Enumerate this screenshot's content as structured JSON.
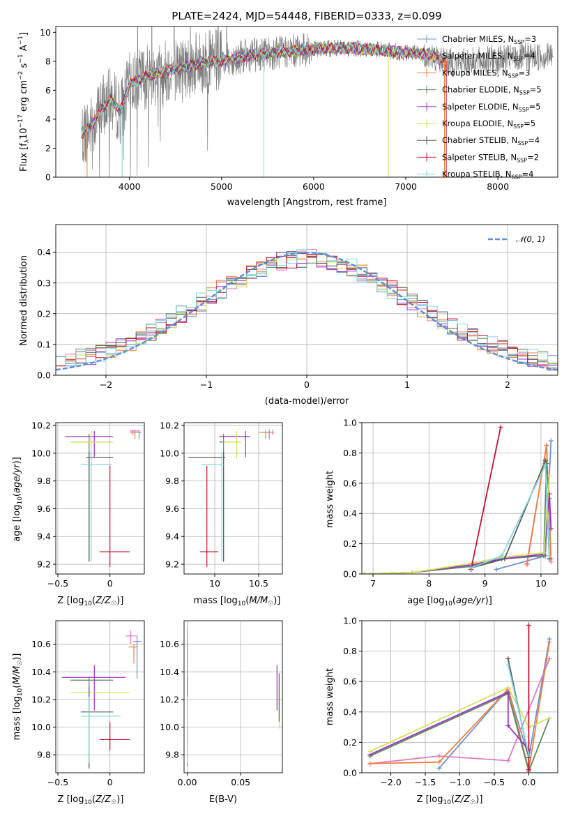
{
  "figure_title": "PLATE=2424, MJD=54448, FIBERID=0333, z=0.099",
  "series_styles": [
    {
      "name": "Chabrier MILES",
      "nssp": "3",
      "color": "#6f8fd6"
    },
    {
      "name": "Salpeter MILES",
      "nssp": "4",
      "color": "#e377c2"
    },
    {
      "name": "Kroupa MILES",
      "nssp": "3",
      "color": "#f07f3a"
    },
    {
      "name": "Chabrier ELODIE",
      "nssp": "5",
      "color": "#5a8a5a"
    },
    {
      "name": "Salpeter ELODIE",
      "nssp": "5",
      "color": "#9b30c8"
    },
    {
      "name": "Kroupa ELODIE",
      "nssp": "5",
      "color": "#d2e25a"
    },
    {
      "name": "Chabrier STELIB",
      "nssp": "4",
      "color": "#5c5c5c"
    },
    {
      "name": "Salpeter STELIB",
      "nssp": "2",
      "color": "#c8102e"
    },
    {
      "name": "Kroupa STELIB",
      "nssp": "4",
      "color": "#7fd8e0"
    }
  ],
  "chart_data": [
    {
      "type": "line",
      "id": "spectrum",
      "xlabel": "wavelength [Angstrom, rest frame]",
      "ylabel": "Flux [f_λ10^-17 erg cm^-2 s^-1 A^-1]",
      "xlim": [
        3200,
        8650
      ],
      "ylim": [
        0,
        10.4
      ],
      "xticks": [
        4000,
        5000,
        6000,
        7000,
        8000
      ],
      "yticks": [
        0,
        2,
        4,
        6,
        8,
        10
      ],
      "legend": "right",
      "data_color": "#808080",
      "continuum": {
        "x": [
          3480,
          3600,
          3700,
          3800,
          3900,
          4000,
          4200,
          4500,
          4800,
          5000,
          5300,
          5600,
          5900,
          6200,
          6500,
          6800,
          7000,
          7200,
          7400,
          7500
        ],
        "y": [
          3.0,
          3.6,
          4.8,
          5.4,
          4.5,
          6.4,
          7.0,
          7.5,
          7.9,
          8.0,
          8.4,
          8.6,
          8.8,
          8.9,
          8.9,
          8.7,
          8.6,
          8.5,
          8.1,
          7.9
        ]
      }
    },
    {
      "type": "histogram",
      "id": "residuals",
      "xlabel": "(data-model)/error",
      "ylabel": "Normed distribution",
      "xlim": [
        -2.5,
        2.5
      ],
      "ylim": [
        0,
        0.49
      ],
      "xticks": [
        -2,
        -1,
        0,
        1,
        2
      ],
      "yticks": [
        0.0,
        0.1,
        0.2,
        0.3,
        0.4
      ],
      "bin_width": 0.1,
      "legend_label": "N(0,1)",
      "reference_curve": "normal(0,1)",
      "reference_color": "#5b8fd6"
    },
    {
      "type": "scatter",
      "id": "age_vs_Z",
      "xlabel": "Z [log10(Z/Z☉)]",
      "ylabel": "age  [log10(age/yr)]",
      "xlim": [
        -0.52,
        0.33
      ],
      "ylim": [
        9.13,
        10.22
      ],
      "xticks": [
        -0.5,
        0.0
      ],
      "ytick_labels": [
        "9.2",
        "9.4",
        "9.6",
        "9.8",
        "10.0",
        "10.2"
      ],
      "yticks": [
        9.2,
        9.4,
        9.6,
        9.8,
        10.0,
        10.2
      ],
      "points": [
        {
          "s": 0,
          "x": 0.28,
          "y": 10.15,
          "xl": 0.26,
          "xh": 0.3,
          "yl": 10.1,
          "yh": 10.17
        },
        {
          "s": 1,
          "x": 0.22,
          "y": 10.16,
          "xl": 0.19,
          "xh": 0.28,
          "yl": 10.13,
          "yh": 10.17
        },
        {
          "s": 2,
          "x": 0.24,
          "y": 10.15,
          "xl": 0.19,
          "xh": 0.26,
          "yl": 10.1,
          "yh": 10.17
        },
        {
          "s": 3,
          "x": -0.2,
          "y": 10.08,
          "xl": -0.38,
          "xh": 0.03,
          "yl": 9.22,
          "yh": 10.14
        },
        {
          "s": 4,
          "x": -0.15,
          "y": 10.12,
          "xl": -0.43,
          "xh": 0.03,
          "yl": 9.97,
          "yh": 10.16
        },
        {
          "s": 5,
          "x": -0.18,
          "y": 10.08,
          "xl": -0.38,
          "xh": 0.03,
          "yl": 9.96,
          "yh": 10.16
        },
        {
          "s": 6,
          "x": -0.2,
          "y": 9.97,
          "xl": -0.23,
          "xh": 0.03,
          "yl": 9.22,
          "yh": 10.01
        },
        {
          "s": 7,
          "x": 0.0,
          "y": 9.29,
          "xl": -0.1,
          "xh": 0.19,
          "yl": 9.18,
          "yh": 9.91
        },
        {
          "s": 8,
          "x": -0.18,
          "y": 9.92,
          "xl": -0.28,
          "xh": 0.02,
          "yl": 9.22,
          "yh": 10.01
        }
      ]
    },
    {
      "type": "scatter",
      "id": "age_vs_mass",
      "xlabel": "mass [log10(M/M☉)]",
      "ylabel": "",
      "xlim": [
        9.65,
        10.77
      ],
      "ylim": [
        9.13,
        10.22
      ],
      "xticks": [
        10.0,
        10.5
      ],
      "ytick_labels": [
        "9.2",
        "9.4",
        "9.6",
        "9.8",
        "10.0",
        "10.2"
      ],
      "yticks": [
        9.2,
        9.4,
        9.6,
        9.8,
        10.0,
        10.2
      ],
      "points": [
        {
          "s": 0,
          "x": 10.62,
          "y": 10.15,
          "xl": 10.6,
          "xh": 10.64,
          "yl": 10.1,
          "yh": 10.17
        },
        {
          "s": 1,
          "x": 10.66,
          "y": 10.15,
          "xl": 10.61,
          "xh": 10.68,
          "yl": 10.13,
          "yh": 10.17
        },
        {
          "s": 2,
          "x": 10.58,
          "y": 10.15,
          "xl": 10.5,
          "xh": 10.62,
          "yl": 10.1,
          "yh": 10.17
        },
        {
          "s": 3,
          "x": 10.1,
          "y": 10.08,
          "xl": 10.05,
          "xh": 10.3,
          "yl": 9.22,
          "yh": 10.14
        },
        {
          "s": 4,
          "x": 10.35,
          "y": 10.12,
          "xl": 10.05,
          "xh": 10.4,
          "yl": 9.97,
          "yh": 10.16
        },
        {
          "s": 5,
          "x": 10.25,
          "y": 10.08,
          "xl": 10.1,
          "xh": 10.3,
          "yl": 9.96,
          "yh": 10.16
        },
        {
          "s": 6,
          "x": 10.1,
          "y": 9.97,
          "xl": 9.7,
          "xh": 10.12,
          "yl": 9.22,
          "yh": 10.01
        },
        {
          "s": 7,
          "x": 9.91,
          "y": 9.29,
          "xl": 9.83,
          "xh": 10.04,
          "yl": 9.18,
          "yh": 9.91
        },
        {
          "s": 8,
          "x": 10.08,
          "y": 9.92,
          "xl": 9.85,
          "xh": 10.1,
          "yl": 9.22,
          "yh": 10.01
        }
      ]
    },
    {
      "type": "line",
      "id": "massweight_vs_age",
      "xlabel": "age  [log10(age/yr)]",
      "ylabel": "mass weight",
      "xlim": [
        6.8,
        10.3
      ],
      "ylim": [
        0,
        1.0
      ],
      "xticks": [
        7,
        8,
        9,
        10
      ],
      "yticks": [
        0.0,
        0.2,
        0.4,
        0.6,
        0.8,
        1.0
      ],
      "series": [
        {
          "s": 0,
          "x": [
            9.2,
            10.08,
            10.18
          ],
          "y": [
            0.03,
            0.12,
            0.88
          ]
        },
        {
          "s": 1,
          "x": [
            9.75,
            10.1,
            10.18
          ],
          "y": [
            0.06,
            0.85,
            0.08
          ]
        },
        {
          "s": 2,
          "x": [
            9.75,
            10.1,
            10.18
          ],
          "y": [
            0.07,
            0.85,
            0.1
          ]
        },
        {
          "s": 3,
          "x": [
            6.85,
            7.7,
            8.75,
            9.3,
            10.05,
            10.1,
            10.15
          ],
          "y": [
            0.0,
            0.01,
            0.05,
            0.1,
            0.12,
            0.73,
            0.5
          ]
        },
        {
          "s": 4,
          "x": [
            6.85,
            7.7,
            8.75,
            9.3,
            10.05,
            10.15,
            10.18
          ],
          "y": [
            0.0,
            0.01,
            0.06,
            0.1,
            0.13,
            0.53,
            0.3
          ]
        },
        {
          "s": 5,
          "x": [
            6.85,
            7.7,
            8.75,
            9.3,
            10.05,
            10.15
          ],
          "y": [
            0.0,
            0.01,
            0.07,
            0.11,
            0.14,
            0.65
          ]
        },
        {
          "s": 6,
          "x": [
            8.75,
            9.35,
            10.08,
            10.15
          ],
          "y": [
            0.04,
            0.1,
            0.75,
            0.1
          ]
        },
        {
          "s": 7,
          "x": [
            8.75,
            9.28
          ],
          "y": [
            0.03,
            0.97
          ]
        },
        {
          "s": 8,
          "x": [
            8.75,
            9.3,
            10.08,
            10.15
          ],
          "y": [
            0.04,
            0.12,
            0.72,
            0.12
          ]
        }
      ]
    },
    {
      "type": "scatter",
      "id": "mass_vs_Z",
      "xlabel": "Z [log10(Z/Z☉)]",
      "ylabel": "mass [log10(M/M☉)]",
      "xlim": [
        -0.52,
        0.33
      ],
      "ylim": [
        9.67,
        10.77
      ],
      "xticks": [
        -0.5,
        0.0
      ],
      "ytick_labels": [
        "9.8",
        "10.0",
        "10.2",
        "10.4",
        "10.6"
      ],
      "yticks": [
        9.8,
        10.0,
        10.2,
        10.4,
        10.6
      ],
      "points": [
        {
          "s": 0,
          "x": 0.26,
          "y": 10.62,
          "xl": 0.22,
          "xh": 0.3,
          "yl": 10.35,
          "yh": 10.66
        },
        {
          "s": 1,
          "x": 0.2,
          "y": 10.66,
          "xl": 0.15,
          "xh": 0.26,
          "yl": 10.6,
          "yh": 10.7
        },
        {
          "s": 2,
          "x": 0.23,
          "y": 10.58,
          "xl": 0.18,
          "xh": 0.26,
          "yl": 10.46,
          "yh": 10.6
        },
        {
          "s": 3,
          "x": -0.2,
          "y": 10.34,
          "xl": -0.38,
          "xh": 0.03,
          "yl": 9.72,
          "yh": 10.36
        },
        {
          "s": 4,
          "x": -0.15,
          "y": 10.36,
          "xl": -0.46,
          "xh": 0.15,
          "yl": 10.12,
          "yh": 10.45
        },
        {
          "s": 5,
          "x": -0.2,
          "y": 10.25,
          "xl": -0.38,
          "xh": 0.19,
          "yl": 9.82,
          "yh": 10.3
        },
        {
          "s": 6,
          "x": -0.2,
          "y": 10.11,
          "xl": -0.28,
          "xh": 0.03,
          "yl": 9.7,
          "yh": 10.3
        },
        {
          "s": 7,
          "x": 0.0,
          "y": 9.91,
          "xl": -0.1,
          "xh": 0.19,
          "yl": 9.83,
          "yh": 10.04
        },
        {
          "s": 8,
          "x": -0.2,
          "y": 10.08,
          "xl": -0.28,
          "xh": 0.1,
          "yl": 9.74,
          "yh": 10.22
        }
      ]
    },
    {
      "type": "scatter",
      "id": "mass_vs_ebv",
      "xlabel": "E(B-V)",
      "ylabel": "",
      "xlim": [
        -0.003,
        0.089
      ],
      "ylim": [
        9.67,
        10.77
      ],
      "xticks": [
        0.0,
        0.05
      ],
      "xtick_labels": [
        "0.00",
        "0.05"
      ],
      "ytick_labels": [
        "9.8",
        "10.0",
        "10.2",
        "10.4",
        "10.6"
      ],
      "yticks": [
        9.8,
        10.0,
        10.2,
        10.4,
        10.6
      ],
      "points": [
        {
          "s": 0,
          "x": 0.0,
          "y": 10.62,
          "yl": 10.35,
          "yh": 10.66
        },
        {
          "s": 1,
          "x": 0.0,
          "y": 10.66,
          "yl": 10.6,
          "yh": 10.72
        },
        {
          "s": 2,
          "x": 0.0,
          "y": 10.58,
          "yl": 10.46,
          "yh": 10.6
        },
        {
          "s": 3,
          "x": 0.0,
          "y": 10.34,
          "yl": 9.72,
          "yh": 10.36
        },
        {
          "s": 4,
          "x": 0.084,
          "y": 10.36,
          "yl": 10.12,
          "yh": 10.45
        },
        {
          "s": 5,
          "x": 0.086,
          "y": 10.25,
          "yl": 9.99,
          "yh": 10.3
        },
        {
          "s": 6,
          "x": 0.086,
          "y": 10.11,
          "yl": 10.04,
          "yh": 10.39
        },
        {
          "s": 7,
          "x": 0.0,
          "y": 9.91,
          "yl": 9.83,
          "yh": 10.04
        },
        {
          "s": 8,
          "x": 0.0,
          "y": 10.08,
          "yl": 9.74,
          "yh": 10.22
        }
      ]
    },
    {
      "type": "line",
      "id": "massweight_vs_Z",
      "xlabel": "Z [log10(Z/Z☉)]",
      "ylabel": "mass weight",
      "xlim": [
        -2.42,
        0.42
      ],
      "ylim": [
        0,
        1.0
      ],
      "xticks": [
        -2.0,
        -1.5,
        -1.0,
        -0.5,
        0.0
      ],
      "xtick_labels": [
        "−2.0",
        "−1.5",
        "−1.0",
        "−0.5",
        "0.0"
      ],
      "yticks": [
        0.0,
        0.2,
        0.4,
        0.6,
        0.8,
        1.0
      ],
      "series": [
        {
          "s": 0,
          "x": [
            -1.3,
            -0.3,
            0.0,
            0.3
          ],
          "y": [
            0.03,
            0.55,
            0.1,
            0.88
          ]
        },
        {
          "s": 1,
          "x": [
            -2.3,
            -1.3,
            -0.3,
            0.3
          ],
          "y": [
            0.06,
            0.11,
            0.08,
            0.75
          ]
        },
        {
          "s": 2,
          "x": [
            -2.3,
            -1.3,
            -0.3,
            0.0,
            0.3
          ],
          "y": [
            0.06,
            0.07,
            0.55,
            0.02,
            0.86
          ]
        },
        {
          "s": 3,
          "x": [
            -2.3,
            -0.3,
            0.0,
            0.3
          ],
          "y": [
            0.11,
            0.52,
            0.01,
            0.36
          ]
        },
        {
          "s": 4,
          "x": [
            -2.3,
            -0.3,
            -0.3,
            0.0
          ],
          "y": [
            0.12,
            0.53,
            0.31,
            0.15
          ]
        },
        {
          "s": 5,
          "x": [
            -2.3,
            -0.3,
            0.0,
            0.3
          ],
          "y": [
            0.14,
            0.56,
            0.3,
            0.36
          ]
        },
        {
          "s": 6,
          "x": [
            -0.3,
            0.0
          ],
          "y": [
            0.75,
            0.1
          ]
        },
        {
          "s": 7,
          "x": [
            0.0,
            0.0
          ],
          "y": [
            0.97,
            0.02
          ]
        },
        {
          "s": 8,
          "x": [
            -0.3,
            0.0
          ],
          "y": [
            0.71,
            0.12
          ]
        }
      ]
    }
  ]
}
